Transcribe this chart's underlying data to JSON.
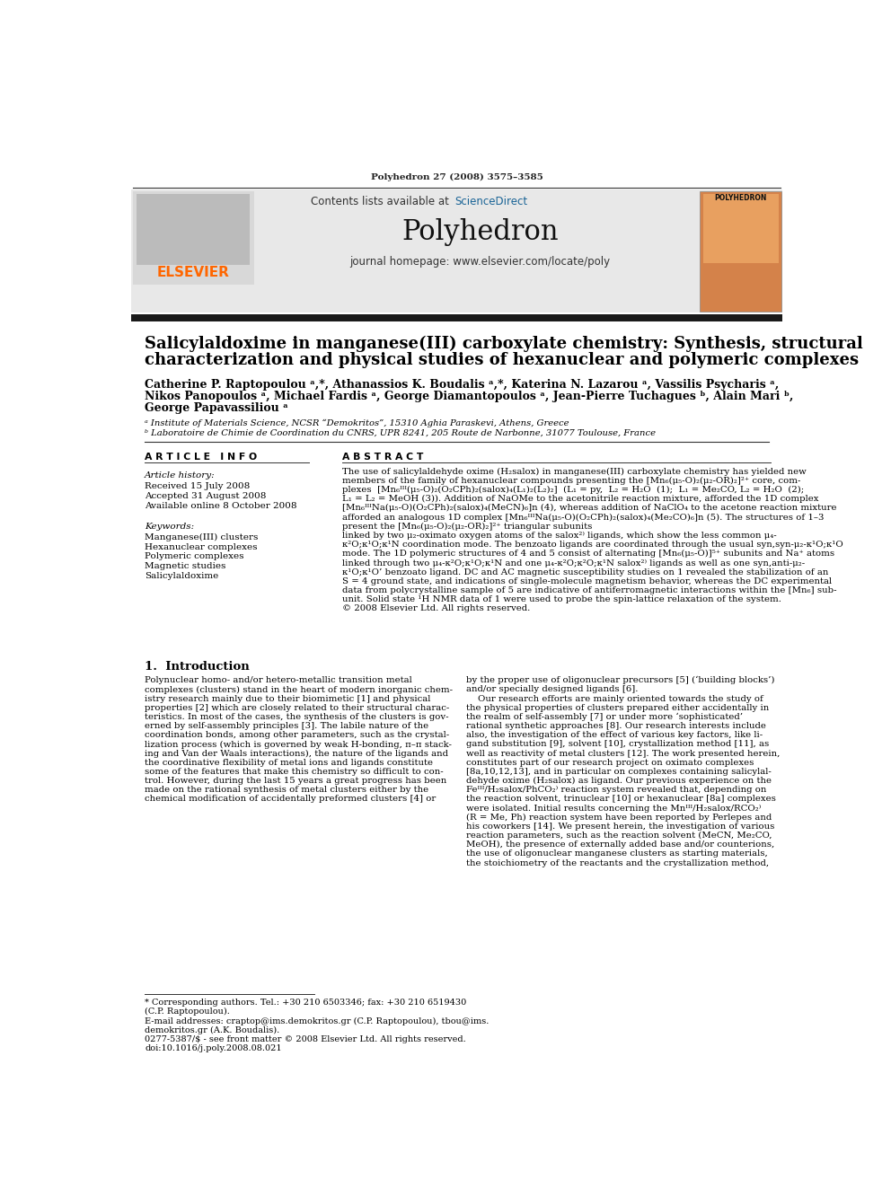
{
  "journal_citation": "Polyhedron 27 (2008) 3575–3585",
  "contents_text": "Contents lists available at ScienceDirect",
  "sciencedirect_color": "#1a6496",
  "journal_name": "Polyhedron",
  "journal_homepage": "journal homepage: www.elsevier.com/locate/poly",
  "elsevier_color": "#ff6600",
  "header_bg": "#e8e8e8",
  "dark_bar_color": "#1a1a1a",
  "article_info_header": "A R T I C L E   I N F O",
  "abstract_header": "A B S T R A C T",
  "article_history_label": "Article history:",
  "received": "Received 15 July 2008",
  "accepted": "Accepted 31 August 2008",
  "available": "Available online 8 October 2008",
  "keywords_label": "Keywords:",
  "keywords": "Manganese(III) clusters\nHexanuclear complexes\nPolymeric complexes\nMagnetic studies\nSalicylaldoxime",
  "abstract_text": "The use of salicylaldehyde oxime (H₂salox) in manganese(III) carboxylate chemistry has yielded new\nmembers of the family of hexanuclear compounds presenting the [Mn₆(μ₅-O)₂(μ₂-OR)₂]²⁺ core, com-\nplexes  [Mn₆ᴵᴵᴵ(μ₅-O)₂(O₂CPh)₂(salox)₄(L₁)₂(L₂)₂]  (L₁ = py,  L₂ = H₂O  (1);  L₁ = Me₂CO, L₂ = H₂O  (2);\nL₁ = L₂ = MeOH (3)). Addition of NaOMe to the acetonitrile reaction mixture, afforded the 1D complex\n[Mn₆ᴵᴵᴵNa(μ₅-O)(O₂CPh)₂(salox)₄(MeCN)₆]n (4), whereas addition of NaClO₄ to the acetone reaction mixture\nafforded an analogous 1D complex [Mn₆ᴵᴵᴵNa(μ₅-O)(O₂CPh)₂(salox)₄(Me₂CO)₆]n (5). The structures of 1–3\npresent the [Mn₆(μ₅-O)₂(μ₂-OR)₂]²⁺ triangular subunits\nlinked by two μ₂-oximato oxygen atoms of the salox²⁾ ligands, which show the less common μ₄-\nκ²O;κ¹O;κ¹N coordination mode. The benzoato ligands are coordinated through the usual syn,syn-μ₂-κ¹O;κ¹O\nmode. The 1D polymeric structures of 4 and 5 consist of alternating [Mn₆(μ₅-O)]⁵⁺ subunits and Na⁺ atoms\nlinked through two μ₄-κ²O;κ¹O;κ¹N and one μ₄-κ²O;κ²O;κ¹N salox²⁾ ligands as well as one syn,anti-μ₂-\nκ¹O;κ¹O’ benzoato ligand. DC and AC magnetic susceptibility studies on 1 revealed the stabilization of an\nS = 4 ground state, and indications of single-molecule magnetism behavior, whereas the DC experimental\ndata from polycrystalline sample of 5 are indicative of antiferromagnetic interactions within the [Mn₆] sub-\nunit. Solid state ¹H NMR data of 1 were used to probe the spin-lattice relaxation of the system.\n© 2008 Elsevier Ltd. All rights reserved.",
  "intro_header": "1.  Introduction",
  "intro_col1": "Polynuclear homo- and/or hetero-metallic transition metal\ncomplexes (clusters) stand in the heart of modern inorganic chem-\nistry research mainly due to their biomimetic [1] and physical\nproperties [2] which are closely related to their structural charac-\nteristics. In most of the cases, the synthesis of the clusters is gov-\nerned by self-assembly principles [3]. The labile nature of the\ncoordination bonds, among other parameters, such as the crystal-\nlization process (which is governed by weak H-bonding, π–π stack-\ning and Van der Waals interactions), the nature of the ligands and\nthe coordinative flexibility of metal ions and ligands constitute\nsome of the features that make this chemistry so difficult to con-\ntrol. However, during the last 15 years a great progress has been\nmade on the rational synthesis of metal clusters either by the\nchemical modification of accidentally preformed clusters [4] or",
  "intro_col2": "by the proper use of oligonuclear precursors [5] (‘building blocks’)\nand/or specially designed ligands [6].\n    Our research efforts are mainly oriented towards the study of\nthe physical properties of clusters prepared either accidentally in\nthe realm of self-assembly [7] or under more ‘sophisticated’\nrational synthetic approaches [8]. Our research interests include\nalso, the investigation of the effect of various key factors, like li-\ngand substitution [9], solvent [10], crystallization method [11], as\nwell as reactivity of metal clusters [12]. The work presented herein,\nconstitutes part of our research project on oximato complexes\n[8a,10,12,13], and in particular on complexes containing salicylal-\ndehyde oxime (H₂salox) as ligand. Our previous experience on the\nFeᴵᴵᴵ/H₂salox/PhCO₂⁾ reaction system revealed that, depending on\nthe reaction solvent, trinuclear [10] or hexanuclear [8a] complexes\nwere isolated. Initial results concerning the Mnᴵᴵᴵ/H₂salox/RCO₂⁾\n(R = Me, Ph) reaction system have been reported by Perlepes and\nhis coworkers [14]. We present herein, the investigation of various\nreaction parameters, such as the reaction solvent (MeCN, Me₂CO,\nMeOH), the presence of externally added base and/or counterions,\nthe use of oligonuclear manganese clusters as starting materials,\nthe stoichiometry of the reactants and the crystallization method,",
  "footnote_star": "* Corresponding authors. Tel.: +30 210 6503346; fax: +30 210 6519430\n(C.P. Raptopoulou).",
  "footnote_email": "E-mail addresses: craptop@ims.demokritos.gr (C.P. Raptopoulou), tbou@ims.\ndemokritos.gr (A.K. Boudalis).",
  "footnote_bottom": "0277-5387/$ - see front matter © 2008 Elsevier Ltd. All rights reserved.\ndoi:10.1016/j.poly.2008.08.021",
  "bg_color": "#ffffff",
  "text_color": "#000000"
}
